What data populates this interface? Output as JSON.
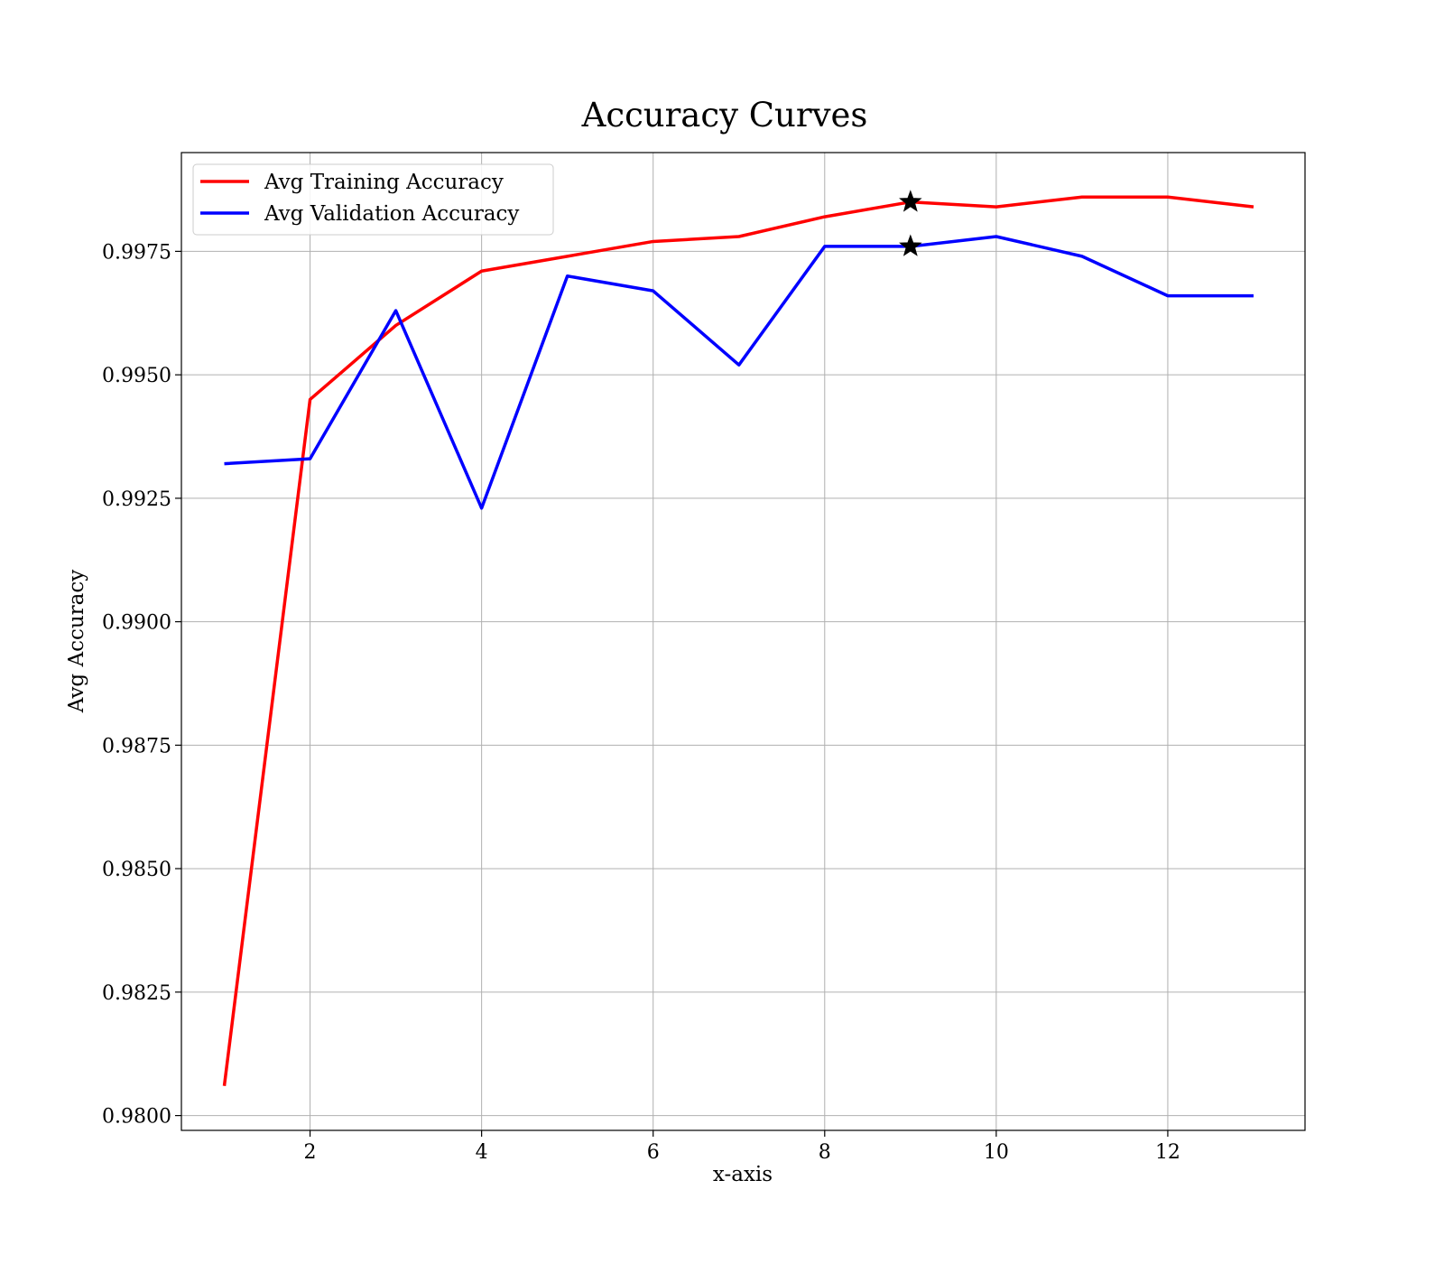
{
  "chart_data": {
    "type": "line",
    "title": "Accuracy Curves",
    "xlabel": "x-axis",
    "ylabel": "Avg Accuracy",
    "xlim": [
      0.5,
      13.6
    ],
    "ylim": [
      0.9797,
      0.9995
    ],
    "x_ticks": [
      2,
      4,
      6,
      8,
      10,
      12
    ],
    "y_ticks": [
      0.98,
      0.9825,
      0.985,
      0.9875,
      0.99,
      0.9925,
      0.995,
      0.9975
    ],
    "y_tick_labels": [
      "0.9800",
      "0.9825",
      "0.9850",
      "0.9875",
      "0.9900",
      "0.9925",
      "0.9950",
      "0.9975"
    ],
    "grid": true,
    "legend_position": "upper-left",
    "x": [
      1,
      2,
      3,
      4,
      5,
      6,
      7,
      8,
      9,
      10,
      11,
      12,
      13
    ],
    "series": [
      {
        "name": "Avg Training Accuracy",
        "color": "#ff0000",
        "values": [
          0.9806,
          0.9945,
          0.996,
          0.9971,
          0.9974,
          0.9977,
          0.9978,
          0.9982,
          0.9985,
          0.9984,
          0.9986,
          0.9986,
          0.9984
        ]
      },
      {
        "name": "Avg Validation Accuracy",
        "color": "#0000ff",
        "values": [
          0.9932,
          0.9933,
          0.9963,
          0.9923,
          0.997,
          0.9967,
          0.9952,
          0.9976,
          0.9976,
          0.9978,
          0.9974,
          0.9966,
          0.9966
        ]
      }
    ],
    "markers": [
      {
        "series": "Avg Training Accuracy",
        "x": 9,
        "y": 0.9985,
        "symbol": "star"
      },
      {
        "series": "Avg Validation Accuracy",
        "x": 9,
        "y": 0.9976,
        "symbol": "star"
      }
    ]
  }
}
